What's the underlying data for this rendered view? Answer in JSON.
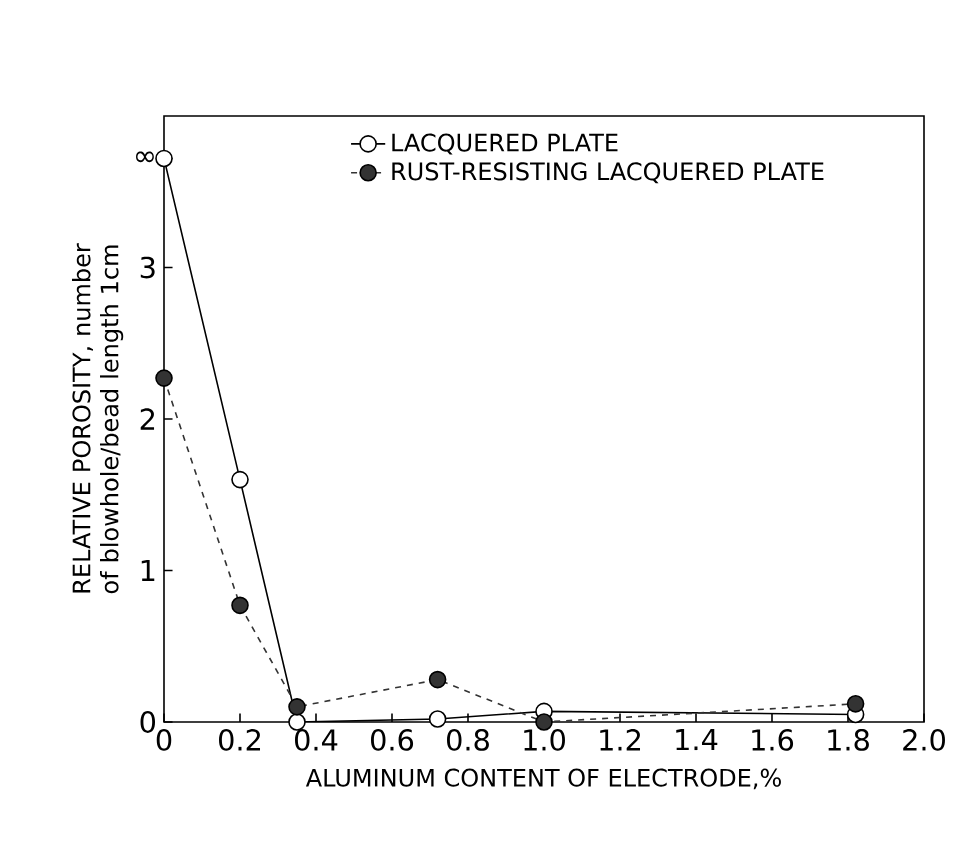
{
  "chart_data": {
    "type": "line",
    "xlabel": "ALUMINUM CONTENT OF ELECTRODE,%",
    "ylabel": "RELATIVE POROSITY, number of blowhole/bead length 1cm",
    "x": [
      0,
      0.2,
      0.35,
      0.72,
      1.0,
      1.82
    ],
    "series": [
      {
        "name": "LACQUERED PLATE",
        "color": "#000000",
        "values": [
          3.72,
          1.6,
          0.0,
          0.02,
          0.07,
          0.05
        ],
        "line_style": "solid"
      },
      {
        "name": "RUST-RESISTING LACQUERED PLATE",
        "color": "#333333",
        "values": [
          2.27,
          0.77,
          0.1,
          0.28,
          0.0,
          0.12
        ],
        "line_style": "dashed"
      }
    ],
    "xlim": [
      0,
      2.0
    ],
    "ylim": [
      0,
      4.0
    ],
    "xticks": [
      0,
      {
        "value": 0.2,
        "label": "0.2"
      },
      {
        "value": 0.4,
        "label": "0.4"
      },
      {
        "value": 0.6,
        "label": "0.6"
      },
      {
        "value": 0.8,
        "label": "0.8"
      },
      {
        "value": 1.0,
        "label": "1.0"
      },
      {
        "value": 1.2,
        "label": "1.2"
      },
      {
        "value": 1.4,
        "label": "1.4"
      },
      {
        "value": 1.6,
        "label": "1.6"
      },
      {
        "value": 1.8,
        "label": "1.8"
      },
      {
        "value": 2.0,
        "label": "2.0"
      }
    ],
    "yticks": [
      0,
      1,
      2,
      3,
      {
        "value": 3.72,
        "label": "∞"
      }
    ],
    "marker": "circle",
    "legend": "top",
    "grid": false
  }
}
